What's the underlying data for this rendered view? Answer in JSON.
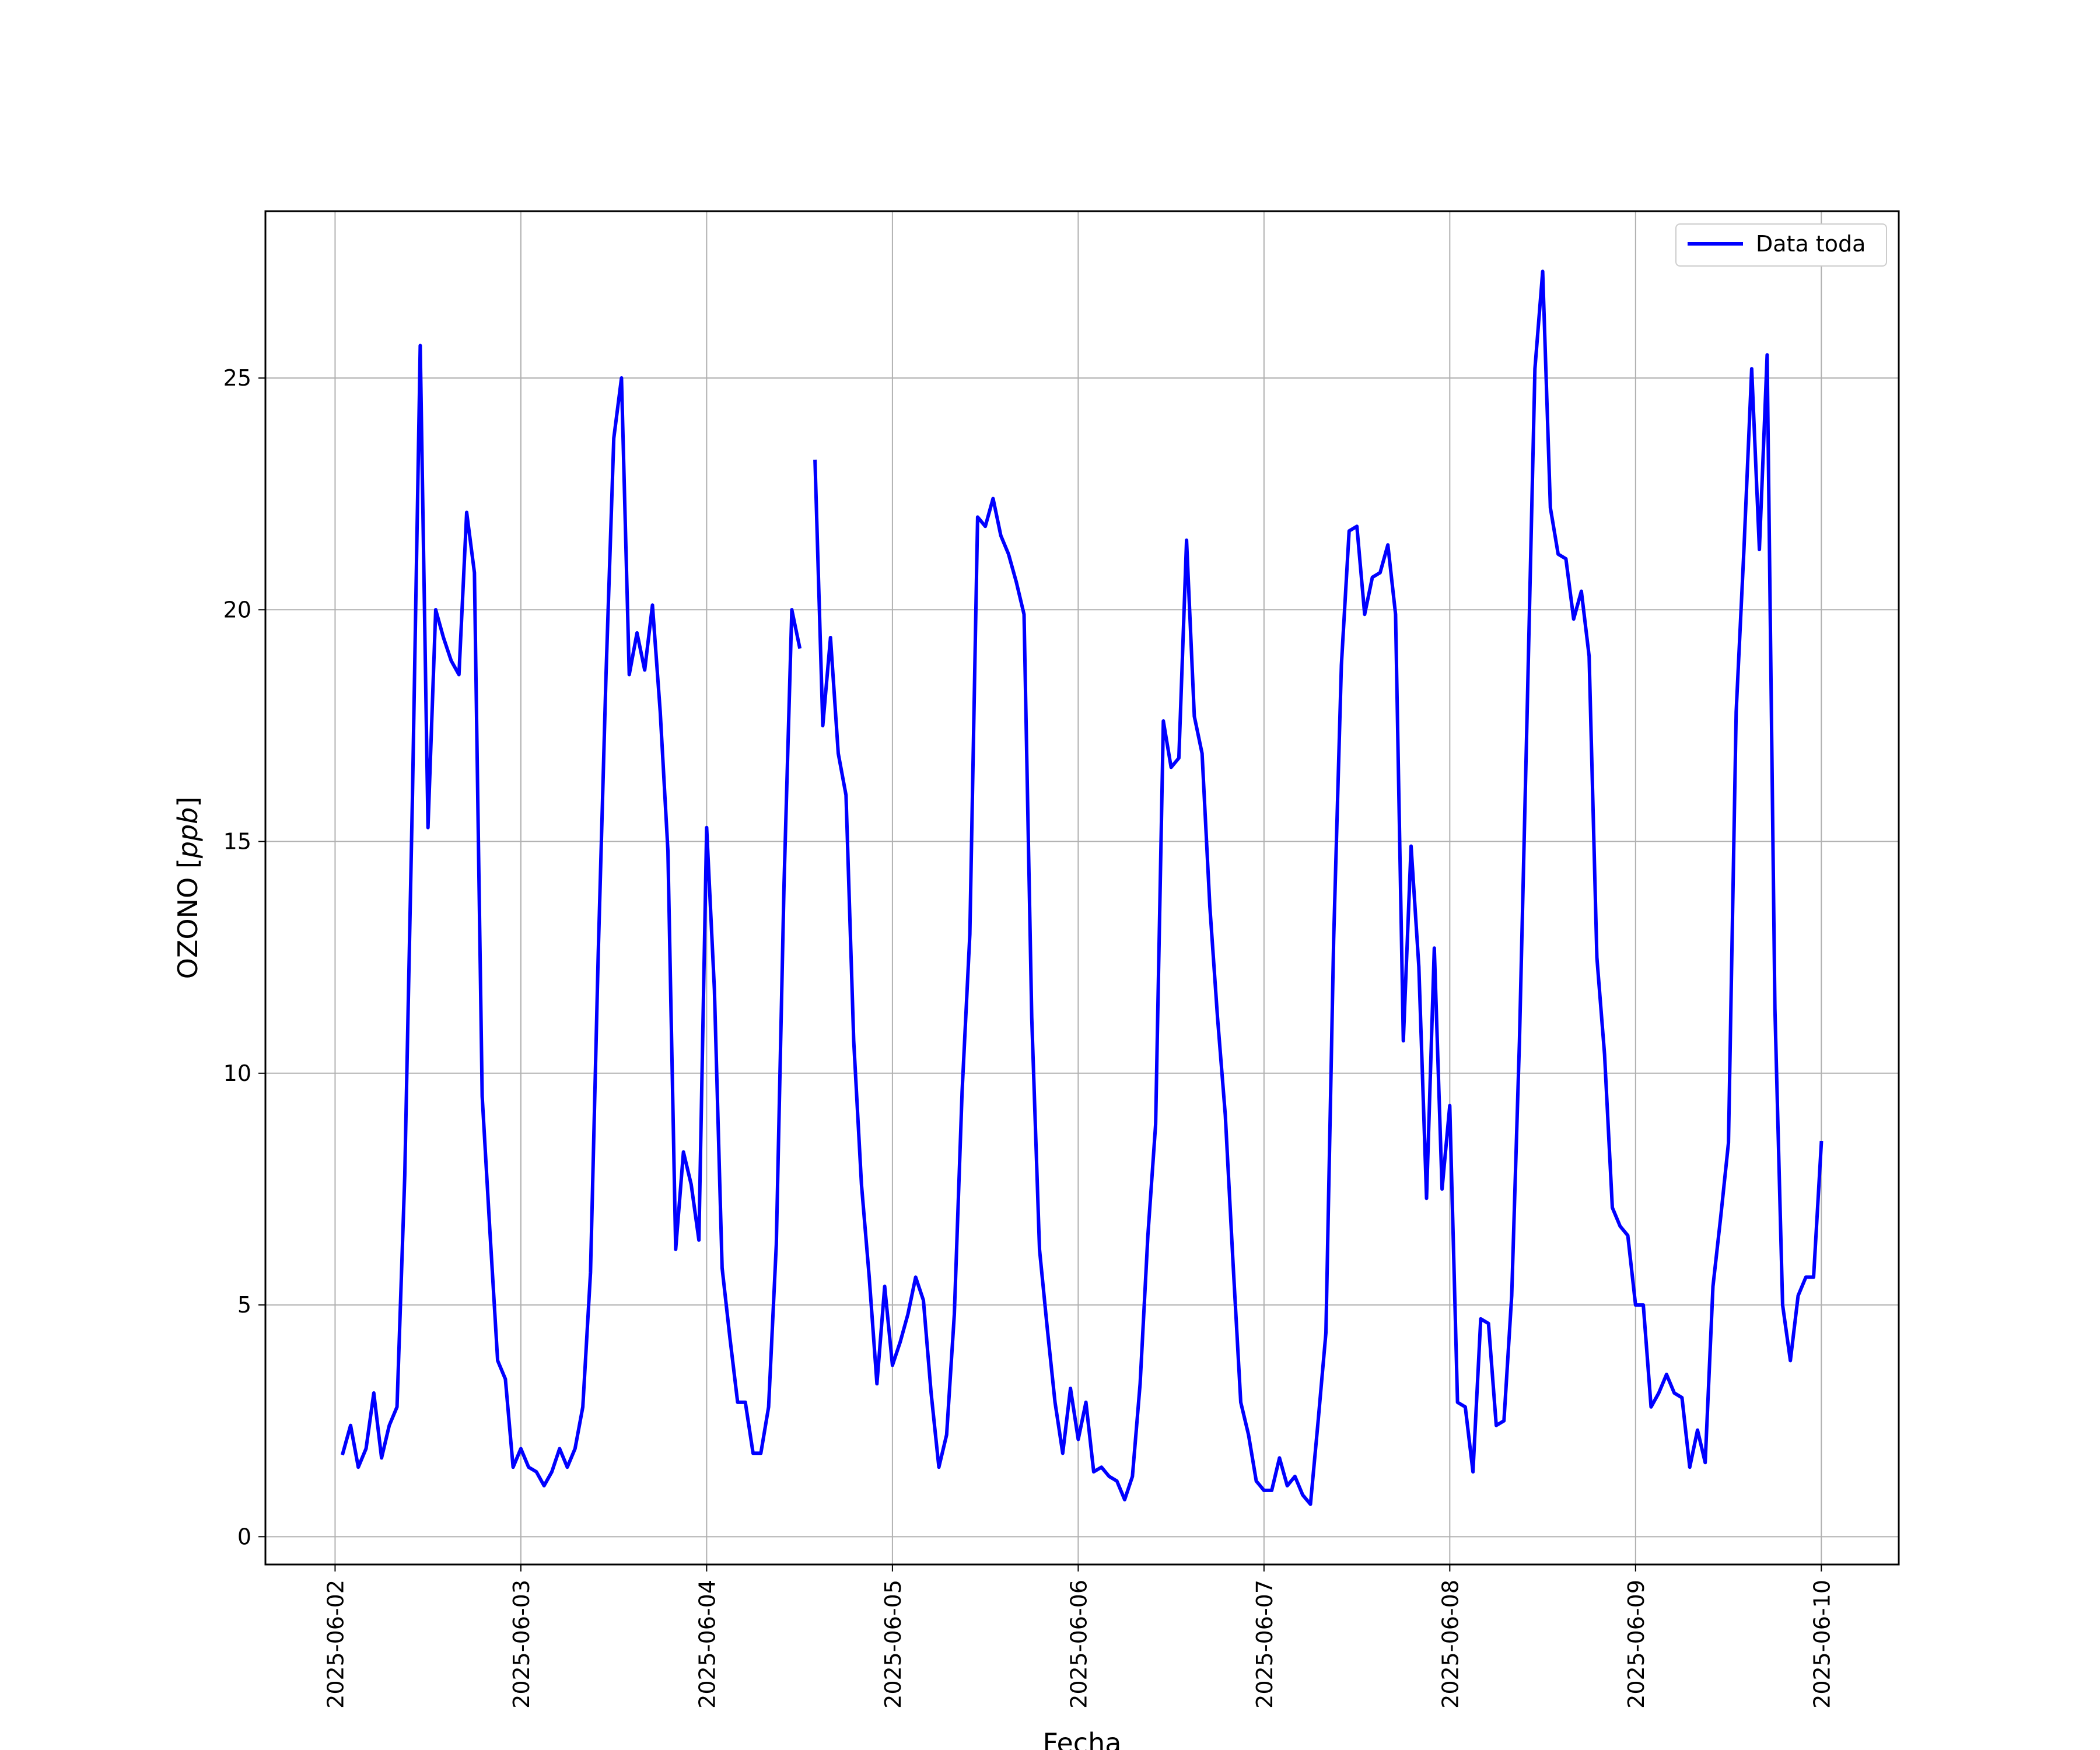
{
  "chart_data": {
    "type": "line",
    "xlabel": "Fecha",
    "ylabel_main": "OZONO [",
    "ylabel_unit": "ppb",
    "ylabel_close": "]",
    "xlim": [
      "2025-06-01T15:00",
      "2025-06-10T10:00"
    ],
    "ylim": [
      -0.6,
      28.6
    ],
    "x_ticks": [
      "2025-06-02",
      "2025-06-03",
      "2025-06-04",
      "2025-06-05",
      "2025-06-06",
      "2025-06-07",
      "2025-06-08",
      "2025-06-09",
      "2025-06-10"
    ],
    "y_ticks": [
      0,
      5,
      10,
      15,
      20,
      25
    ],
    "grid": true,
    "legend_position": "upper right",
    "series": [
      {
        "name": "Data toda",
        "color": "#0000ff",
        "x_start": "2025-06-02T01:00",
        "x_step_hours": 1,
        "values": [
          1.8,
          2.4,
          1.5,
          1.9,
          3.1,
          1.7,
          2.4,
          2.8,
          7.8,
          16.0,
          25.7,
          15.3,
          20.0,
          19.4,
          18.9,
          18.6,
          22.1,
          20.8,
          9.5,
          6.6,
          3.8,
          3.4,
          1.5,
          1.9,
          1.5,
          1.4,
          1.1,
          1.4,
          1.9,
          1.5,
          1.9,
          2.8,
          5.7,
          12.6,
          18.6,
          23.7,
          25.0,
          18.6,
          19.5,
          18.7,
          20.1,
          17.8,
          14.8,
          6.2,
          8.3,
          7.6,
          6.4,
          15.3,
          11.8,
          5.8,
          4.3,
          2.9,
          2.9,
          1.8,
          1.8,
          2.8,
          6.3,
          14.1,
          20.0,
          19.2,
          null,
          23.2,
          17.5,
          19.4,
          16.9,
          16.0,
          10.7,
          7.6,
          5.6,
          3.3,
          5.4,
          3.7,
          4.2,
          4.8,
          5.6,
          5.1,
          3.1,
          1.5,
          2.2,
          4.8,
          9.6,
          13.0,
          22.0,
          21.8,
          22.4,
          21.6,
          21.2,
          20.6,
          19.9,
          11.2,
          6.2,
          4.5,
          2.9,
          1.8,
          3.2,
          2.1,
          2.9,
          1.4,
          1.5,
          1.3,
          1.2,
          0.8,
          1.3,
          3.3,
          6.5,
          8.9,
          17.6,
          16.6,
          16.8,
          21.5,
          17.7,
          16.9,
          13.6,
          11.2,
          9.1,
          5.9,
          2.9,
          2.2,
          1.2,
          1.0,
          1.0,
          1.7,
          1.1,
          1.3,
          0.9,
          0.7,
          2.5,
          4.4,
          12.9,
          18.8,
          21.7,
          21.8,
          19.9,
          20.7,
          20.8,
          21.4,
          19.9,
          10.7,
          14.9,
          12.3,
          7.3,
          12.7,
          7.5,
          9.3,
          2.9,
          2.8,
          1.4,
          4.7,
          4.6,
          2.4,
          2.5,
          5.2,
          10.7,
          17.8,
          25.2,
          27.3,
          22.2,
          21.2,
          21.1,
          19.8,
          20.4,
          19.0,
          12.5,
          10.4,
          7.1,
          6.7,
          6.5,
          5.0,
          5.0,
          2.8,
          3.1,
          3.5,
          3.1,
          3.0,
          1.5,
          2.3,
          1.6,
          5.4,
          6.9,
          8.5,
          17.8,
          21.3,
          25.2,
          21.3,
          25.5,
          11.4,
          5.0,
          3.8,
          5.2,
          5.6,
          5.6,
          8.5
        ]
      }
    ]
  }
}
